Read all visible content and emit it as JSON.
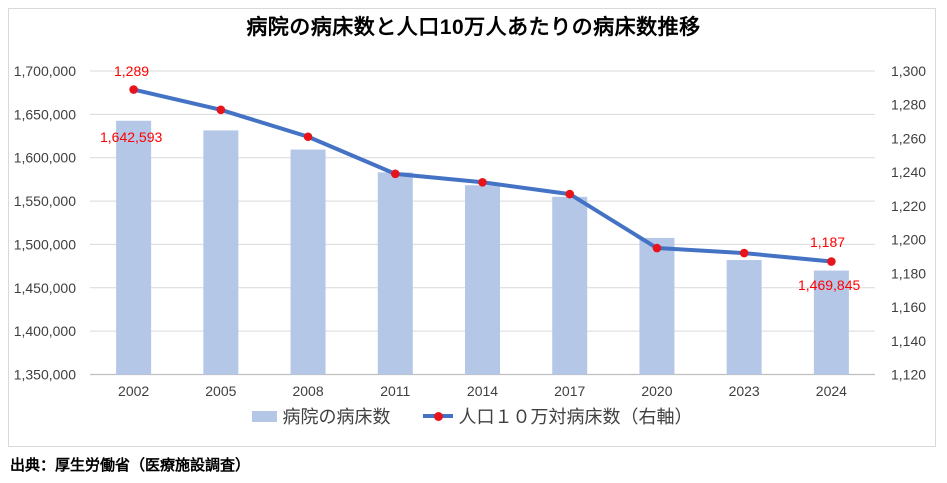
{
  "source": "出典：厚生労働省（医療施設調査）",
  "chart_data": {
    "type": "bar+line combo",
    "title": "病院の病床数と人口10万人あたりの病床数推移",
    "categories": [
      "2002",
      "2005",
      "2008",
      "2011",
      "2014",
      "2017",
      "2020",
      "2023",
      "2024"
    ],
    "series": [
      {
        "name": "病院の病床数",
        "type": "bar",
        "axis": "left",
        "values": [
          1642593,
          1631473,
          1609403,
          1583073,
          1568261,
          1554879,
          1507526,
          1482000,
          1469845
        ]
      },
      {
        "name": "人口１０万対病床数（右軸）",
        "type": "line",
        "axis": "right",
        "values": [
          1289,
          1277,
          1261,
          1239,
          1234,
          1227,
          1195,
          1192,
          1187
        ]
      }
    ],
    "left_axis": {
      "min": 1350000,
      "max": 1700000,
      "step": 50000,
      "tick_labels": [
        "1,350,000",
        "1,400,000",
        "1,450,000",
        "1,500,000",
        "1,550,000",
        "1,600,000",
        "1,650,000",
        "1,700,000"
      ]
    },
    "right_axis": {
      "min": 1120,
      "max": 1300,
      "step": 20,
      "tick_labels": [
        "1,120",
        "1,140",
        "1,160",
        "1,180",
        "1,200",
        "1,220",
        "1,240",
        "1,260",
        "1,280",
        "1,300"
      ]
    },
    "grid": true,
    "legend_position": "bottom",
    "data_labels": {
      "line_first": "1,289",
      "bar_first": "1,642,593",
      "line_last": "1,187",
      "bar_last": "1,469,845"
    },
    "colors": {
      "bar": "#b4c7e7",
      "line": "#4472c4",
      "marker": "#e8141b",
      "label_red": "#ff0000",
      "grid": "#d9d9d9",
      "axis_line": "#bfbfbf",
      "axis_text": "#3f3f3f"
    }
  }
}
